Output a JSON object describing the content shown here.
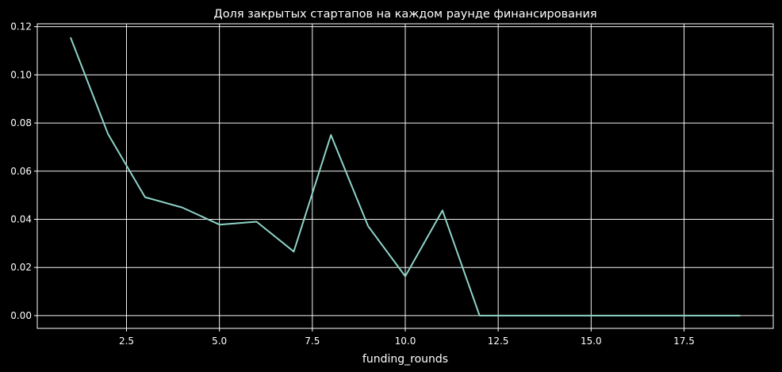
{
  "chart_data": {
    "type": "line",
    "title": "Доля закрытых стартапов на каждом раунде финансирования",
    "xlabel": "funding_rounds",
    "ylabel": "",
    "xlim": [
      0.1,
      19.9
    ],
    "ylim": [
      -0.0053,
      0.1212
    ],
    "x_ticks": [
      2.5,
      5.0,
      7.5,
      10.0,
      12.5,
      15.0,
      17.5
    ],
    "x_tick_labels": [
      "2.5",
      "5.0",
      "7.5",
      "10.0",
      "12.5",
      "15.0",
      "17.5"
    ],
    "y_ticks": [
      0.0,
      0.02,
      0.04,
      0.06,
      0.08,
      0.1,
      0.12
    ],
    "y_tick_labels": [
      "0.00",
      "0.02",
      "0.04",
      "0.06",
      "0.08",
      "0.10",
      "0.12"
    ],
    "grid": true,
    "background": "#000000",
    "foreground": "#ffffff",
    "series": [
      {
        "color": "#8dd3c7",
        "x": [
          1,
          2,
          3,
          4,
          5,
          6,
          7,
          8,
          9,
          10,
          11,
          12,
          13,
          14,
          15,
          16,
          17,
          18,
          19
        ],
        "y": [
          0.1153,
          0.0755,
          0.0492,
          0.0449,
          0.0378,
          0.039,
          0.0266,
          0.075,
          0.0372,
          0.0163,
          0.0437,
          0.0,
          0.0,
          0.0,
          0.0,
          0.0,
          0.0,
          0.0,
          0.0
        ]
      }
    ]
  }
}
